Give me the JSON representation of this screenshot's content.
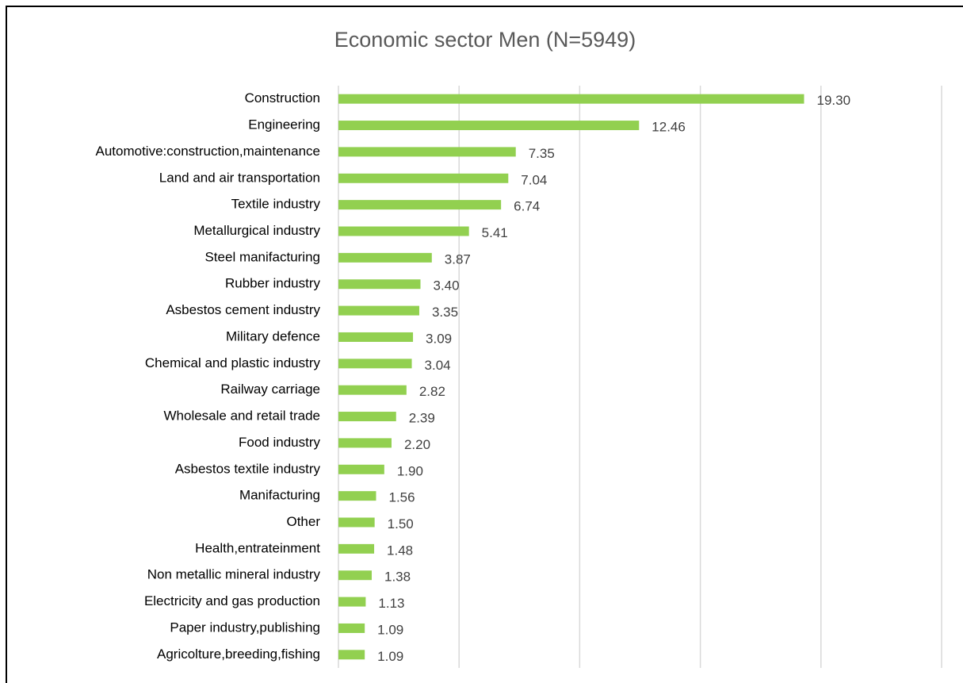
{
  "chart_data": {
    "type": "bar",
    "orientation": "horizontal",
    "title": "Economic sector Men (N=5949)",
    "categories": [
      "Construction",
      "Engineering",
      "Automotive:construction,maintenance",
      "Land and air transportation",
      "Textile industry",
      "Metallurgical industry",
      "Steel manifacturing",
      "Rubber industry",
      "Asbestos cement industry",
      "Military defence",
      "Chemical and plastic industry",
      "Railway carriage",
      "Wholesale and retail trade",
      "Food industry",
      "Asbestos textile industry",
      "Manifacturing",
      "Other",
      "Health,entrateinment",
      "Non metallic mineral industry",
      "Electricity and gas production",
      "Paper industry,publishing",
      "Agricolture,breeding,fishing"
    ],
    "values": [
      19.3,
      12.46,
      7.35,
      7.04,
      6.74,
      5.41,
      3.87,
      3.4,
      3.35,
      3.09,
      3.04,
      2.82,
      2.39,
      2.2,
      1.9,
      1.56,
      1.5,
      1.48,
      1.38,
      1.13,
      1.09,
      1.09
    ],
    "value_labels": [
      "19.30",
      "12.46",
      "7.35",
      "7.04",
      "6.74",
      "5.41",
      "3.87",
      "3.40",
      "3.35",
      "3.09",
      "3.04",
      "2.82",
      "2.39",
      "2.20",
      "1.90",
      "1.56",
      "1.50",
      "1.48",
      "1.38",
      "1.13",
      "1.09",
      "1.09"
    ],
    "color": "#92d050",
    "xlim": [
      0,
      25
    ],
    "xticks": [
      0,
      5,
      10,
      15,
      20,
      25
    ],
    "grid": true
  }
}
